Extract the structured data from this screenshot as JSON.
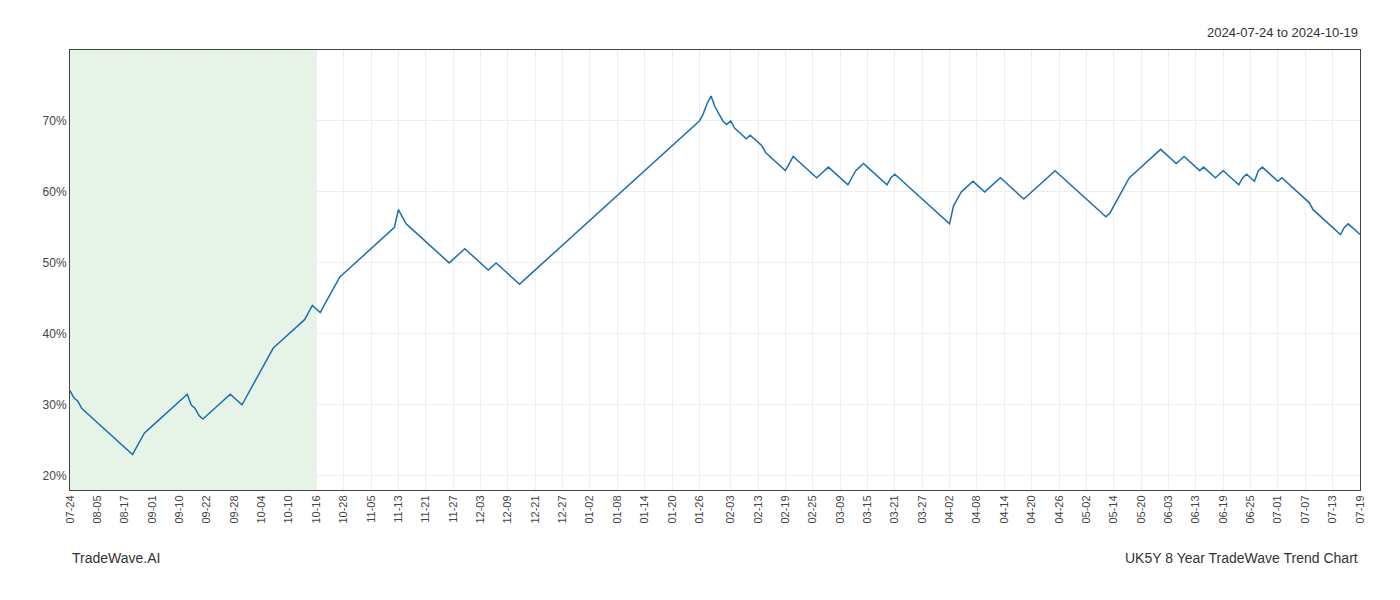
{
  "chart_data": {
    "type": "line",
    "annotations": [
      "2024-07-24 to 2024-10-19",
      "TradeWave.AI",
      "UK5Y 8 Year TradeWave Trend Chart"
    ],
    "color": "#1a6faf",
    "grid": true,
    "ylim": [
      18,
      80
    ],
    "yticks": [
      {
        "value": 20,
        "label": "20%"
      },
      {
        "value": 30,
        "label": "30%"
      },
      {
        "value": 40,
        "label": "40%"
      },
      {
        "value": 50,
        "label": "50%"
      },
      {
        "value": 60,
        "label": "60%"
      },
      {
        "value": 70,
        "label": "70%"
      }
    ],
    "shaded_range": {
      "from": "07-24",
      "to": "10-16",
      "color": "#c8e6c9"
    },
    "categories": [
      "07-24",
      null,
      null,
      null,
      null,
      null,
      null,
      "08-05",
      null,
      null,
      null,
      null,
      null,
      null,
      "08-17",
      null,
      null,
      null,
      null,
      null,
      null,
      "09-01",
      null,
      null,
      null,
      null,
      null,
      null,
      "09-10",
      null,
      null,
      null,
      null,
      null,
      null,
      "09-22",
      null,
      null,
      null,
      null,
      null,
      null,
      "09-28",
      null,
      null,
      null,
      null,
      null,
      null,
      "10-04",
      null,
      null,
      null,
      null,
      null,
      null,
      "10-10",
      null,
      null,
      null,
      null,
      null,
      null,
      "10-16",
      null,
      null,
      null,
      null,
      null,
      null,
      "10-28",
      null,
      null,
      null,
      null,
      null,
      null,
      "11-05",
      null,
      null,
      null,
      null,
      null,
      null,
      "11-13",
      null,
      null,
      null,
      null,
      null,
      null,
      "11-21",
      null,
      null,
      null,
      null,
      null,
      null,
      "11-27",
      null,
      null,
      null,
      null,
      null,
      null,
      "12-03",
      null,
      null,
      null,
      null,
      null,
      null,
      "12-09",
      null,
      null,
      null,
      null,
      null,
      null,
      "12-21",
      null,
      null,
      null,
      null,
      null,
      null,
      "12-27",
      null,
      null,
      null,
      null,
      null,
      null,
      "01-02",
      null,
      null,
      null,
      null,
      null,
      null,
      "01-08",
      null,
      null,
      null,
      null,
      null,
      null,
      "01-14",
      null,
      null,
      null,
      null,
      null,
      null,
      "01-20",
      null,
      null,
      null,
      null,
      null,
      null,
      "01-26",
      null,
      null,
      null,
      null,
      null,
      null,
      null,
      "02-03",
      null,
      null,
      null,
      null,
      null,
      null,
      "02-13",
      null,
      null,
      null,
      null,
      null,
      null,
      "02-19",
      null,
      null,
      null,
      null,
      null,
      null,
      "02-25",
      null,
      null,
      null,
      null,
      null,
      null,
      "03-09",
      null,
      null,
      null,
      null,
      null,
      null,
      "03-15",
      null,
      null,
      null,
      null,
      null,
      null,
      "03-21",
      null,
      null,
      null,
      null,
      null,
      null,
      "03-27",
      null,
      null,
      null,
      null,
      null,
      null,
      "04-02",
      null,
      null,
      null,
      null,
      null,
      null,
      "04-08",
      null,
      null,
      null,
      null,
      null,
      null,
      "04-14",
      null,
      null,
      null,
      null,
      null,
      null,
      "04-20",
      null,
      null,
      null,
      null,
      null,
      null,
      "04-26",
      null,
      null,
      null,
      null,
      null,
      null,
      "05-02",
      null,
      null,
      null,
      null,
      null,
      null,
      "05-14",
      null,
      null,
      null,
      null,
      null,
      null,
      "05-20",
      null,
      null,
      null,
      null,
      null,
      null,
      "06-03",
      null,
      null,
      null,
      null,
      null,
      null,
      "06-13",
      null,
      null,
      null,
      null,
      null,
      null,
      "06-19",
      null,
      null,
      null,
      null,
      null,
      null,
      "06-25",
      null,
      null,
      null,
      null,
      null,
      null,
      "07-01",
      null,
      null,
      null,
      null,
      null,
      null,
      "07-07",
      null,
      null,
      null,
      null,
      null,
      null,
      "07-13",
      null,
      null,
      null,
      null,
      null,
      null,
      "07-19"
    ],
    "values": [
      32.0,
      31.0,
      30.5,
      29.5,
      29.0,
      28.5,
      28.0,
      27.5,
      27.0,
      26.5,
      26.0,
      25.5,
      25.0,
      24.5,
      24.0,
      23.5,
      23.0,
      24.0,
      25.0,
      26.0,
      26.5,
      27.0,
      27.5,
      28.0,
      28.5,
      29.0,
      29.5,
      30.0,
      30.5,
      31.0,
      31.5,
      30.0,
      29.5,
      28.5,
      28.0,
      28.5,
      29.0,
      29.5,
      30.0,
      30.5,
      31.0,
      31.5,
      31.0,
      30.5,
      30.0,
      31.0,
      32.0,
      33.0,
      34.0,
      35.0,
      36.0,
      37.0,
      38.0,
      38.5,
      39.0,
      39.5,
      40.0,
      40.5,
      41.0,
      41.5,
      42.0,
      43.0,
      44.0,
      43.5,
      43.0,
      44.0,
      45.0,
      46.0,
      47.0,
      48.0,
      48.5,
      49.0,
      49.5,
      50.0,
      50.5,
      51.0,
      51.5,
      52.0,
      52.5,
      53.0,
      53.5,
      54.0,
      54.5,
      55.0,
      57.5,
      56.5,
      55.5,
      55.0,
      54.5,
      54.0,
      53.5,
      53.0,
      52.5,
      52.0,
      51.5,
      51.0,
      50.5,
      50.0,
      50.5,
      51.0,
      51.5,
      52.0,
      51.5,
      51.0,
      50.5,
      50.0,
      49.5,
      49.0,
      49.5,
      50.0,
      49.5,
      49.0,
      48.5,
      48.0,
      47.5,
      47.0,
      47.5,
      48.0,
      48.5,
      49.0,
      49.5,
      50.0,
      50.5,
      51.0,
      51.5,
      52.0,
      52.5,
      53.0,
      53.5,
      54.0,
      54.5,
      55.0,
      55.5,
      56.0,
      56.5,
      57.0,
      57.5,
      58.0,
      58.5,
      59.0,
      59.5,
      60.0,
      60.5,
      61.0,
      61.5,
      62.0,
      62.5,
      63.0,
      63.5,
      64.0,
      64.5,
      65.0,
      65.5,
      66.0,
      66.5,
      67.0,
      67.5,
      68.0,
      68.5,
      69.0,
      69.5,
      70.0,
      71.0,
      72.5,
      73.5,
      72.0,
      71.0,
      70.0,
      69.5,
      70.0,
      69.0,
      68.5,
      68.0,
      67.5,
      68.0,
      67.5,
      67.0,
      66.5,
      65.5,
      65.0,
      64.5,
      64.0,
      63.5,
      63.0,
      64.0,
      65.0,
      64.5,
      64.0,
      63.5,
      63.0,
      62.5,
      62.0,
      62.5,
      63.0,
      63.5,
      63.0,
      62.5,
      62.0,
      61.5,
      61.0,
      62.0,
      63.0,
      63.5,
      64.0,
      63.5,
      63.0,
      62.5,
      62.0,
      61.5,
      61.0,
      62.0,
      62.5,
      62.0,
      61.5,
      61.0,
      60.5,
      60.0,
      59.5,
      59.0,
      58.5,
      58.0,
      57.5,
      57.0,
      56.5,
      56.0,
      55.5,
      58.0,
      59.0,
      60.0,
      60.5,
      61.0,
      61.5,
      61.0,
      60.5,
      60.0,
      60.5,
      61.0,
      61.5,
      62.0,
      61.5,
      61.0,
      60.5,
      60.0,
      59.5,
      59.0,
      59.5,
      60.0,
      60.5,
      61.0,
      61.5,
      62.0,
      62.5,
      63.0,
      62.5,
      62.0,
      61.5,
      61.0,
      60.5,
      60.0,
      59.5,
      59.0,
      58.5,
      58.0,
      57.5,
      57.0,
      56.5,
      57.0,
      58.0,
      59.0,
      60.0,
      61.0,
      62.0,
      62.5,
      63.0,
      63.5,
      64.0,
      64.5,
      65.0,
      65.5,
      66.0,
      65.5,
      65.0,
      64.5,
      64.0,
      64.5,
      65.0,
      64.5,
      64.0,
      63.5,
      63.0,
      63.5,
      63.0,
      62.5,
      62.0,
      62.5,
      63.0,
      62.5,
      62.0,
      61.5,
      61.0,
      62.0,
      62.5,
      62.0,
      61.5,
      63.0,
      63.5,
      63.0,
      62.5,
      62.0,
      61.5,
      62.0,
      61.5,
      61.0,
      60.5,
      60.0,
      59.5,
      59.0,
      58.5,
      57.5,
      57.0,
      56.5,
      56.0,
      55.5,
      55.0,
      54.5,
      54.0,
      55.0,
      55.5,
      55.0,
      54.5,
      54.0
    ]
  }
}
